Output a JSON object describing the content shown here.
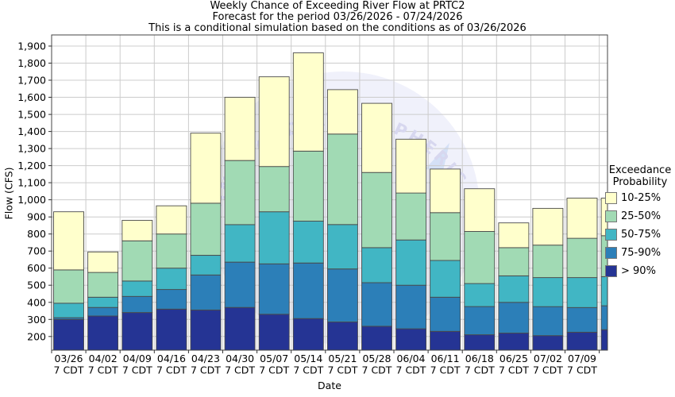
{
  "header": {
    "title": "Weekly Chance of Exceeding River Flow at PRTC2",
    "subtitle": "Forecast for the period 03/26/2026 - 07/24/2026",
    "note": "This is a conditional simulation based on the conditions as of 03/26/2026"
  },
  "legend": {
    "title_line1": "Exceedance",
    "title_line2": "Probability",
    "items": [
      {
        "label": "10-25%",
        "color": "#FFFFCC"
      },
      {
        "label": "25-50%",
        "color": "#A1DAB4"
      },
      {
        "label": "50-75%",
        "color": "#41B6C4"
      },
      {
        "label": "75-90%",
        "color": "#2C7FB8"
      },
      {
        "label": "> 90%",
        "color": "#253494"
      }
    ]
  },
  "watermark": {
    "text": "OCEANIC AND ATMOSPHERIC ADMINISTRATION",
    "text_color": "#d7d7ef",
    "circle_color": "#e3e6f7",
    "bird_color": "#cddcf5"
  },
  "chart_data": {
    "type": "bar",
    "stacked": true,
    "title": "Weekly Chance of Exceeding River Flow at PRTC2",
    "xlabel": "Date",
    "ylabel": "Flow (CFS)",
    "ylim": [
      120,
      1965
    ],
    "ytick_values": [
      200,
      300,
      400,
      500,
      600,
      700,
      800,
      900,
      1000,
      1100,
      1200,
      1300,
      1400,
      1500,
      1600,
      1700,
      1800,
      1900
    ],
    "grid": true,
    "legend_position": "right",
    "band_names": [
      "10-25%",
      "25-50%",
      "50-75%",
      "75-90%",
      "> 90%"
    ],
    "baseline_flow": 120,
    "time_suffix": "7 CDT",
    "bars": [
      {
        "date": "03/26",
        "tz": "7 CDT",
        "p10": 930,
        "p25": 590,
        "p50": 395,
        "p75": 310,
        "p90": 300
      },
      {
        "date": "04/02",
        "tz": "7 CDT",
        "p10": 695,
        "p25": 575,
        "p50": 430,
        "p75": 370,
        "p90": 320
      },
      {
        "date": "04/09",
        "tz": "7 CDT",
        "p10": 880,
        "p25": 760,
        "p50": 525,
        "p75": 435,
        "p90": 340
      },
      {
        "date": "04/16",
        "tz": "7 CDT",
        "p10": 965,
        "p25": 800,
        "p50": 600,
        "p75": 475,
        "p90": 360
      },
      {
        "date": "04/23",
        "tz": "7 CDT",
        "p10": 1390,
        "p25": 980,
        "p50": 675,
        "p75": 560,
        "p90": 355
      },
      {
        "date": "04/30",
        "tz": "7 CDT",
        "p10": 1600,
        "p25": 1230,
        "p50": 855,
        "p75": 635,
        "p90": 370
      },
      {
        "date": "05/07",
        "tz": "7 CDT",
        "p10": 1720,
        "p25": 1195,
        "p50": 930,
        "p75": 625,
        "p90": 330
      },
      {
        "date": "05/14",
        "tz": "7 CDT",
        "p10": 1860,
        "p25": 1285,
        "p50": 875,
        "p75": 630,
        "p90": 305
      },
      {
        "date": "05/21",
        "tz": "7 CDT",
        "p10": 1645,
        "p25": 1385,
        "p50": 855,
        "p75": 595,
        "p90": 285
      },
      {
        "date": "05/28",
        "tz": "7 CDT",
        "p10": 1565,
        "p25": 1160,
        "p50": 720,
        "p75": 515,
        "p90": 260
      },
      {
        "date": "06/04",
        "tz": "7 CDT",
        "p10": 1355,
        "p25": 1040,
        "p50": 765,
        "p75": 500,
        "p90": 245
      },
      {
        "date": "06/11",
        "tz": "7 CDT",
        "p10": 1180,
        "p25": 925,
        "p50": 645,
        "p75": 430,
        "p90": 230
      },
      {
        "date": "06/18",
        "tz": "7 CDT",
        "p10": 1065,
        "p25": 815,
        "p50": 510,
        "p75": 375,
        "p90": 210
      },
      {
        "date": "06/25",
        "tz": "7 CDT",
        "p10": 865,
        "p25": 720,
        "p50": 555,
        "p75": 400,
        "p90": 220
      },
      {
        "date": "07/02",
        "tz": "7 CDT",
        "p10": 950,
        "p25": 735,
        "p50": 545,
        "p75": 375,
        "p90": 205
      },
      {
        "date": "07/09",
        "tz": "7 CDT",
        "p10": 1010,
        "p25": 775,
        "p50": 545,
        "p75": 370,
        "p90": 225
      },
      {
        "date": "",
        "tz": "",
        "p10": 1010,
        "p25": 790,
        "p50": 550,
        "p75": 380,
        "p90": 240,
        "partial": true
      }
    ]
  }
}
